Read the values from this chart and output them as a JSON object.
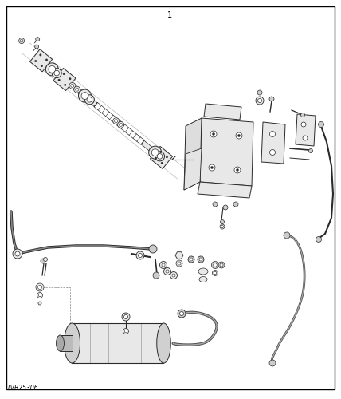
{
  "background_color": "#ffffff",
  "border_color": "#000000",
  "line_color": "#2a2a2a",
  "part_number": "1",
  "diagram_code": "LVB25306",
  "fig_width": 4.28,
  "fig_height": 5.0,
  "dpi": 100
}
